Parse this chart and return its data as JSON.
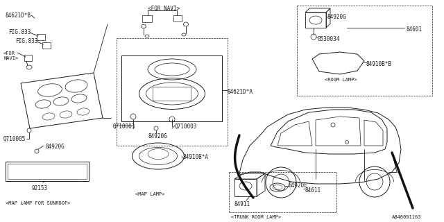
{
  "bg_color": "#ffffff",
  "line_color": "#1a1a1a",
  "text_color": "#1a1a1a",
  "font_size": 5.5,
  "diagram_code": "A846001163",
  "labels": {
    "sec1": "<MAP LAMP FOR SUNROOF>",
    "sec2": "<MAP LAMP>",
    "sec3": "<ROOM LAMP>",
    "sec4": "<TRUNK ROOM LAMP>",
    "p84621db": "84621D*B",
    "fig833a": "FIG.833",
    "fig833b": "FIG.833",
    "fornavi_l": "<FOR\nNAVI>",
    "q710005": "Q710005",
    "84920g_l": "84920G",
    "p92153": "92153",
    "fornavi_c": "<FOR NAVI>",
    "p84621da": "84621D*A",
    "q710003a": "Q710003",
    "q710003b": "Q710003",
    "84920g_c": "84920G",
    "p84910ba": "84910B*A",
    "p84920g_r": "84920G",
    "p0530034": "0530034",
    "p84601": "84601",
    "p84910bb": "84910B*B",
    "p84920e": "84920E",
    "p84611": "84611",
    "p84911": "84911"
  }
}
